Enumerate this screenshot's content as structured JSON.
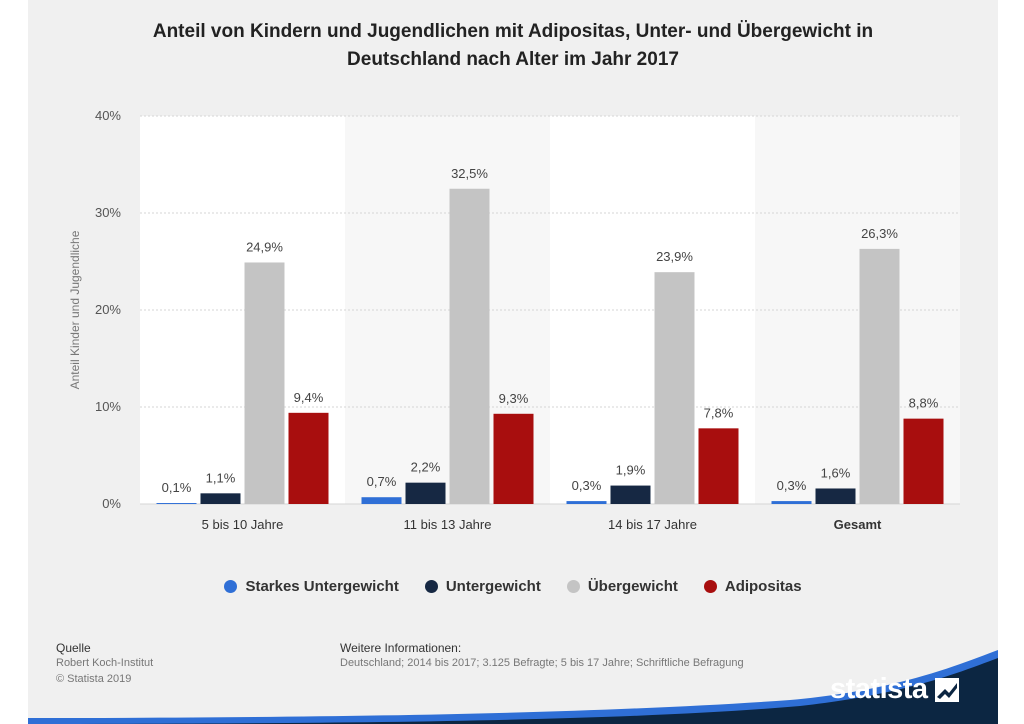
{
  "chart_data": {
    "type": "bar",
    "title": "Anteil von Kindern und Jugendlichen mit Adipositas, Unter- und Übergewicht in Deutschland nach Alter im Jahr 2017",
    "title_lines": [
      "Anteil von Kindern und Jugendlichen mit Adipositas, Unter- und Übergewicht in",
      "Deutschland nach Alter im Jahr 2017"
    ],
    "ylabel": "Anteil Kinder und Jugendliche",
    "xlabel": "",
    "ylim": [
      0,
      40
    ],
    "yticks": [
      0,
      10,
      20,
      30,
      40
    ],
    "ytick_labels": [
      "0%",
      "10%",
      "20%",
      "30%",
      "40%"
    ],
    "categories": [
      "5 bis 10 Jahre",
      "11 bis 13 Jahre",
      "14 bis 17 Jahre",
      "Gesamt"
    ],
    "series": [
      {
        "name": "Starkes Untergewicht",
        "color": "#2f6fd6",
        "values": [
          0.1,
          0.7,
          0.3,
          0.3
        ],
        "labels": [
          "0,1%",
          "0,7%",
          "0,3%",
          "0,3%"
        ]
      },
      {
        "name": "Untergewicht",
        "color": "#162843",
        "values": [
          1.1,
          2.2,
          1.9,
          1.6
        ],
        "labels": [
          "1,1%",
          "2,2%",
          "1,9%",
          "1,6%"
        ]
      },
      {
        "name": "Übergewicht",
        "color": "#c4c4c4",
        "values": [
          24.9,
          32.5,
          23.9,
          26.3
        ],
        "labels": [
          "24,9%",
          "32,5%",
          "23,9%",
          "26,3%"
        ]
      },
      {
        "name": "Adipositas",
        "color": "#a80e0e",
        "values": [
          9.4,
          9.3,
          7.8,
          8.8
        ],
        "labels": [
          "9,4%",
          "9,3%",
          "7,8%",
          "8,8%"
        ]
      }
    ],
    "bold_categories": [
      "Gesamt"
    ],
    "grid": true,
    "legend_position": "bottom-center"
  },
  "footer": {
    "source_label": "Quelle",
    "source_lines": [
      "Robert Koch-Institut",
      "© Statista 2019"
    ],
    "info_label": "Weitere Informationen:",
    "info_text": "Deutschland; 2014 bis 2017; 3.125 Befragte; 5 bis 17 Jahre; Schriftliche Befragung",
    "brand": "statista"
  },
  "colors": {
    "footer_wave": "#0c2642",
    "footer_stripe": "#2f6fd6"
  }
}
